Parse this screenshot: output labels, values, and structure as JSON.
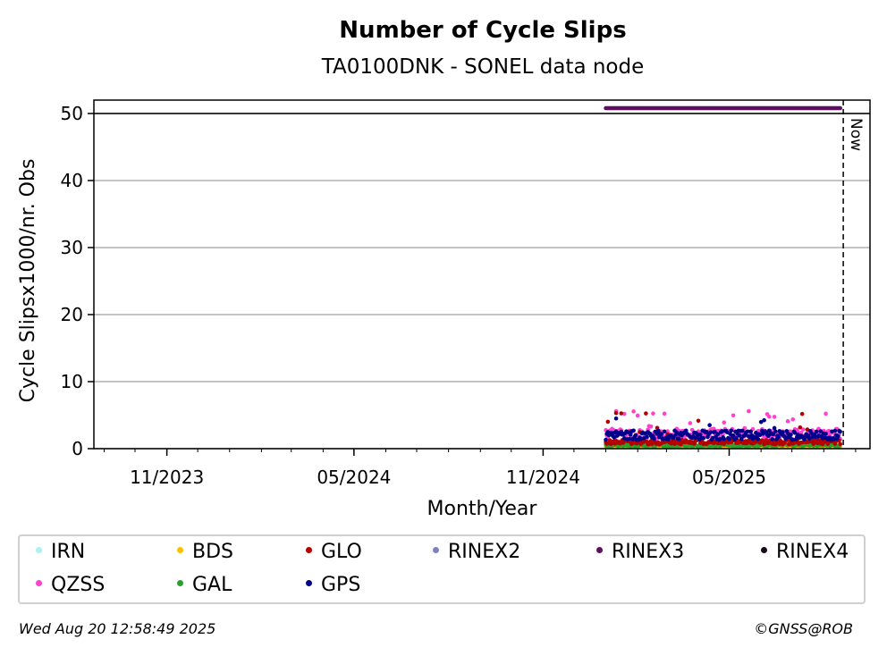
{
  "chart_data": {
    "type": "scatter",
    "title": "Number of Cycle Slips",
    "subtitle": "TA0100DNK - SONEL data node",
    "xlabel": "Month/Year",
    "ylabel": "Cycle Slipsx1000/nr. Obs",
    "xlim": [
      "2023-08-22",
      "2025-09-15"
    ],
    "ylim": [
      0,
      52
    ],
    "yticks": [
      0,
      10,
      20,
      30,
      40,
      50
    ],
    "xticks": [
      {
        "date": "2023-11-01",
        "label": "11/2023"
      },
      {
        "date": "2024-05-01",
        "label": "05/2024"
      },
      {
        "date": "2024-11-01",
        "label": "11/2024"
      },
      {
        "date": "2025-05-01",
        "label": "05/2025"
      }
    ],
    "grid": "y",
    "reference_line": {
      "y": 50
    },
    "now_marker": {
      "date": "2025-08-20",
      "label": "Now"
    },
    "x_range_start": "2025-01-01",
    "x_range_end": "2025-08-17",
    "series": [
      {
        "name": "RINEX3",
        "color": "#5f0f5f",
        "y": 50.8,
        "pattern": "constant"
      },
      {
        "name": "GPS",
        "color": "#00008b",
        "typical": 2.0,
        "min": 1.0,
        "max": 4.5
      },
      {
        "name": "GLO",
        "color": "#b40000",
        "typical": 1.0,
        "min": 0.2,
        "max": 5.3
      },
      {
        "name": "GAL",
        "color": "#2ca02c",
        "typical": 0.5,
        "min": 0.1,
        "max": 1.2
      },
      {
        "name": "QZSS",
        "color": "#ff40d0",
        "typical": 2.2,
        "min": 1.0,
        "max": 5.6
      },
      {
        "name": "BDS",
        "color": "#ffbf00",
        "typical": 0.3,
        "min": 0.1,
        "max": 0.8
      }
    ]
  },
  "legend": [
    {
      "name": "IRN",
      "color": "#aff0f0"
    },
    {
      "name": "BDS",
      "color": "#ffbf00"
    },
    {
      "name": "GLO",
      "color": "#b40000"
    },
    {
      "name": "RINEX2",
      "color": "#8080c0"
    },
    {
      "name": "RINEX3",
      "color": "#5f0f5f"
    },
    {
      "name": "RINEX4",
      "color": "#1a0a1a"
    },
    {
      "name": "QZSS",
      "color": "#ff40d0"
    },
    {
      "name": "GAL",
      "color": "#2ca02c"
    },
    {
      "name": "GPS",
      "color": "#00008b"
    }
  ],
  "footer": {
    "timestamp": "Wed Aug 20 12:58:49 2025",
    "credit": "©GNSS@ROB"
  }
}
